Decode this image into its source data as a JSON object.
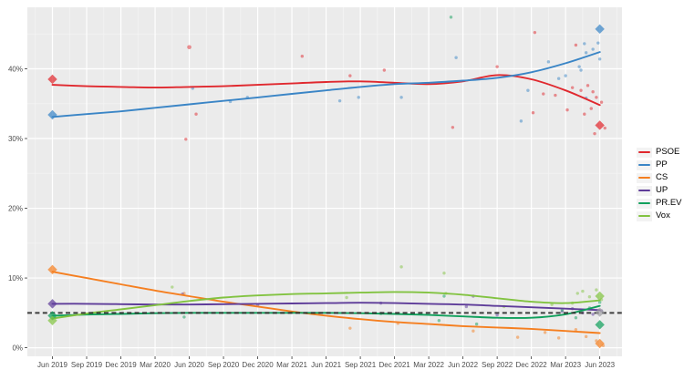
{
  "chart_data": {
    "type": "scatter",
    "subtype": "poll-scatter-with-smoothed-trend-lines",
    "title": "",
    "xlabel": "",
    "ylabel": "",
    "x_tick_labels": [
      "Jun 2019",
      "Sep 2019",
      "Dec 2019",
      "Mar 2020",
      "Jun 2020",
      "Sep 2020",
      "Dec 2020",
      "Mar 2021",
      "Jun 2021",
      "Sep 2021",
      "Dec 2021",
      "Mar 2022",
      "Jun 2022",
      "Sep 2022",
      "Dec 2022",
      "Mar 2023",
      "Jun 2023"
    ],
    "y_tick_labels": [
      "0%",
      "10%",
      "20%",
      "30%",
      "40%"
    ],
    "y_tick_values": [
      0,
      10,
      20,
      30,
      40
    ],
    "ylim": [
      -1.4,
      48.9
    ],
    "grid": true,
    "panel_background": "#ebebeb",
    "grid_major_color": "#ffffff",
    "grid_minor_color": "#f4f4f4",
    "legend_position": "right",
    "threshold_line": {
      "value": 5,
      "style": "dashed",
      "color": "#2e2e2e"
    },
    "series": [
      {
        "name": "PSOE",
        "color": "#e0282e",
        "trend": [
          37.7,
          37.5,
          37.4,
          37.3,
          37.4,
          37.5,
          37.7,
          37.9,
          38.1,
          38.2,
          38.0,
          37.8,
          38.2,
          39.1,
          38.5,
          36.9,
          34.8
        ],
        "start_marker": 38.5,
        "end_marker": 31.9
      },
      {
        "name": "PP",
        "color": "#3a85c6",
        "trend": [
          33.1,
          33.5,
          33.9,
          34.4,
          34.9,
          35.4,
          35.9,
          36.4,
          36.9,
          37.4,
          37.8,
          38.0,
          38.3,
          38.7,
          39.5,
          40.8,
          42.4
        ],
        "start_marker": 33.4,
        "end_marker": 45.7
      },
      {
        "name": "CS",
        "color": "#f57f20",
        "trend": [
          10.9,
          10.0,
          9.1,
          8.2,
          7.4,
          6.6,
          5.9,
          5.2,
          4.6,
          4.1,
          3.7,
          3.4,
          3.1,
          2.9,
          2.7,
          2.4,
          2.1
        ],
        "start_marker": 11.2,
        "end_marker": 0.6
      },
      {
        "name": "UP",
        "color": "#5e3c99",
        "trend": [
          6.3,
          6.3,
          6.25,
          6.2,
          6.2,
          6.25,
          6.3,
          6.35,
          6.4,
          6.45,
          6.4,
          6.3,
          6.2,
          6.0,
          5.8,
          5.6,
          5.4
        ],
        "start_marker": 6.3,
        "end_marker": 5.1,
        "end_marker_color": "#9f9fa3"
      },
      {
        "name": "PR.EV",
        "color": "#11a05c",
        "trend": [
          4.6,
          4.75,
          4.85,
          4.95,
          5.0,
          5.0,
          5.0,
          5.0,
          5.0,
          4.95,
          4.85,
          4.7,
          4.5,
          4.3,
          4.3,
          4.8,
          6.0
        ],
        "start_marker": 4.6,
        "end_marker": 3.3
      },
      {
        "name": "Vox",
        "color": "#82c341",
        "trend": [
          4.2,
          4.9,
          5.5,
          6.1,
          6.7,
          7.2,
          7.5,
          7.7,
          7.8,
          7.9,
          8.0,
          7.9,
          7.6,
          7.1,
          6.6,
          6.4,
          6.8
        ],
        "start_marker": 3.9,
        "end_marker": 7.4
      }
    ],
    "scatter_points": [
      {
        "s": 0,
        "q": 3.9,
        "v": 29.9
      },
      {
        "s": 0,
        "q": 4.0,
        "v": 43.1,
        "r": 2.3
      },
      {
        "s": 0,
        "q": 4.2,
        "v": 33.5
      },
      {
        "s": 0,
        "q": 7.3,
        "v": 41.8
      },
      {
        "s": 0,
        "q": 8.7,
        "v": 39.0
      },
      {
        "s": 0,
        "q": 9.7,
        "v": 39.8
      },
      {
        "s": 0,
        "q": 11.7,
        "v": 31.6
      },
      {
        "s": 0,
        "q": 13.0,
        "v": 40.3
      },
      {
        "s": 0,
        "q": 14.1,
        "v": 45.2
      },
      {
        "s": 0,
        "q": 14.05,
        "v": 33.7
      },
      {
        "s": 0,
        "q": 14.35,
        "v": 36.4
      },
      {
        "s": 0,
        "q": 14.7,
        "v": 36.2
      },
      {
        "s": 0,
        "q": 15.05,
        "v": 34.1
      },
      {
        "s": 0,
        "q": 15.2,
        "v": 37.3
      },
      {
        "s": 0,
        "q": 15.3,
        "v": 43.4
      },
      {
        "s": 0,
        "q": 15.45,
        "v": 36.9
      },
      {
        "s": 0,
        "q": 15.55,
        "v": 33.5
      },
      {
        "s": 0,
        "q": 15.65,
        "v": 37.6
      },
      {
        "s": 0,
        "q": 15.75,
        "v": 34.3
      },
      {
        "s": 0,
        "q": 15.8,
        "v": 36.7
      },
      {
        "s": 0,
        "q": 15.85,
        "v": 30.7
      },
      {
        "s": 0,
        "q": 15.9,
        "v": 35.9
      },
      {
        "s": 0,
        "q": 16.05,
        "v": 35.2
      },
      {
        "s": 0,
        "q": 16.15,
        "v": 31.5
      },
      {
        "s": 1,
        "q": 4.1,
        "v": 37.2
      },
      {
        "s": 1,
        "q": 5.2,
        "v": 35.3
      },
      {
        "s": 1,
        "q": 5.7,
        "v": 35.9
      },
      {
        "s": 1,
        "q": 8.4,
        "v": 35.4
      },
      {
        "s": 1,
        "q": 8.95,
        "v": 35.9
      },
      {
        "s": 1,
        "q": 10.2,
        "v": 35.9
      },
      {
        "s": 1,
        "q": 11.8,
        "v": 41.6
      },
      {
        "s": 1,
        "q": 13.7,
        "v": 32.5
      },
      {
        "s": 1,
        "q": 13.9,
        "v": 36.9
      },
      {
        "s": 1,
        "q": 14.5,
        "v": 41.0
      },
      {
        "s": 1,
        "q": 14.8,
        "v": 38.6
      },
      {
        "s": 1,
        "q": 15.0,
        "v": 39.0
      },
      {
        "s": 1,
        "q": 15.4,
        "v": 40.3
      },
      {
        "s": 1,
        "q": 15.45,
        "v": 39.8
      },
      {
        "s": 1,
        "q": 15.55,
        "v": 43.6
      },
      {
        "s": 1,
        "q": 15.6,
        "v": 42.3
      },
      {
        "s": 1,
        "q": 15.6,
        "v": 35.8
      },
      {
        "s": 1,
        "q": 15.8,
        "v": 42.8
      },
      {
        "s": 1,
        "q": 15.95,
        "v": 43.7
      },
      {
        "s": 1,
        "q": 16.0,
        "v": 41.4
      },
      {
        "s": 2,
        "q": 3.85,
        "v": 7.8
      },
      {
        "s": 2,
        "q": 8.7,
        "v": 2.8
      },
      {
        "s": 2,
        "q": 10.1,
        "v": 3.5
      },
      {
        "s": 2,
        "q": 12.3,
        "v": 2.4
      },
      {
        "s": 2,
        "q": 13.6,
        "v": 1.5
      },
      {
        "s": 2,
        "q": 14.4,
        "v": 2.2
      },
      {
        "s": 2,
        "q": 14.8,
        "v": 1.4
      },
      {
        "s": 2,
        "q": 15.3,
        "v": 2.6
      },
      {
        "s": 2,
        "q": 15.6,
        "v": 1.6
      },
      {
        "s": 2,
        "q": 15.9,
        "v": 1.0
      },
      {
        "s": 2,
        "q": 16.1,
        "v": 0.3
      },
      {
        "s": 3,
        "q": 3.8,
        "v": 7.7
      },
      {
        "s": 3,
        "q": 6.0,
        "v": 6.1
      },
      {
        "s": 3,
        "q": 9.6,
        "v": 6.4
      },
      {
        "s": 3,
        "q": 12.1,
        "v": 5.9
      },
      {
        "s": 3,
        "q": 12.3,
        "v": 7.4
      },
      {
        "s": 3,
        "q": 13.0,
        "v": 4.7
      },
      {
        "s": 3,
        "q": 14.9,
        "v": 5.2
      },
      {
        "s": 3,
        "q": 15.2,
        "v": 5.6
      },
      {
        "s": 3,
        "q": 15.5,
        "v": 5.0
      },
      {
        "s": 3,
        "q": 15.8,
        "v": 4.8
      },
      {
        "s": 3,
        "q": 16.05,
        "v": 5.3
      },
      {
        "s": 4,
        "q": 3.85,
        "v": 4.4
      },
      {
        "s": 4,
        "q": 9.6,
        "v": 4.9
      },
      {
        "s": 4,
        "q": 11.3,
        "v": 3.9
      },
      {
        "s": 4,
        "q": 11.65,
        "v": 47.4
      },
      {
        "s": 4,
        "q": 11.45,
        "v": 7.4
      },
      {
        "s": 4,
        "q": 12.4,
        "v": 3.4
      },
      {
        "s": 4,
        "q": 14.9,
        "v": 5.4
      },
      {
        "s": 4,
        "q": 15.3,
        "v": 4.3
      },
      {
        "s": 4,
        "q": 15.7,
        "v": 5.7
      },
      {
        "s": 4,
        "q": 16.0,
        "v": 6.5
      },
      {
        "s": 5,
        "q": 3.5,
        "v": 8.7
      },
      {
        "s": 5,
        "q": 8.6,
        "v": 7.2
      },
      {
        "s": 5,
        "q": 10.2,
        "v": 11.6
      },
      {
        "s": 5,
        "q": 11.45,
        "v": 10.7
      },
      {
        "s": 5,
        "q": 11.5,
        "v": 7.8
      },
      {
        "s": 5,
        "q": 13.2,
        "v": 5.9
      },
      {
        "s": 5,
        "q": 14.6,
        "v": 6.2
      },
      {
        "s": 5,
        "q": 15.2,
        "v": 6.4
      },
      {
        "s": 5,
        "q": 15.35,
        "v": 7.8
      },
      {
        "s": 5,
        "q": 15.5,
        "v": 8.1
      },
      {
        "s": 5,
        "q": 15.7,
        "v": 7.3
      },
      {
        "s": 5,
        "q": 15.9,
        "v": 8.3
      },
      {
        "s": 5,
        "q": 16.05,
        "v": 6.9
      }
    ]
  },
  "legend": {
    "items": [
      {
        "label": "PSOE"
      },
      {
        "label": "PP"
      },
      {
        "label": "CS"
      },
      {
        "label": "UP"
      },
      {
        "label": "PR.EV"
      },
      {
        "label": "Vox"
      }
    ]
  }
}
